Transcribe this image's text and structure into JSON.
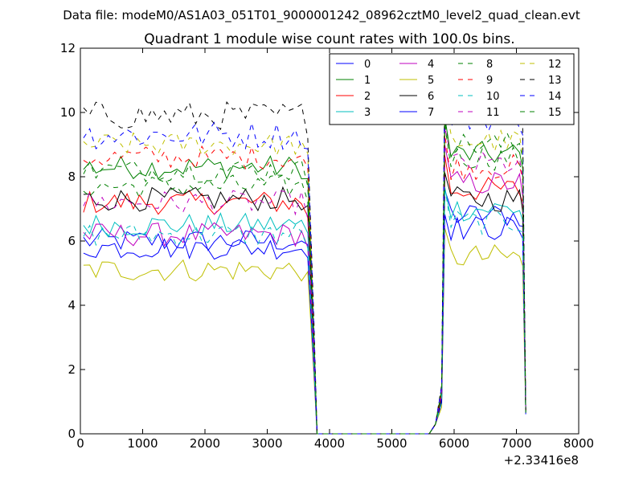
{
  "chart_data": {
    "type": "line",
    "suptitle": "Data file: modeM0/AS1A03_051T01_9000001242_08962cztM0_level2_quad_clean.evt",
    "title": "Quadrant 1 module wise count rates with 100.0s bins.",
    "xlabel": "",
    "ylabel": "",
    "x_offset_label": "+2.33416e8",
    "xlim": [
      0,
      8000
    ],
    "ylim": [
      0,
      12
    ],
    "xticks": [
      "0",
      "1000",
      "2000",
      "3000",
      "4000",
      "5000",
      "6000",
      "7000",
      "8000"
    ],
    "yticks": [
      "0",
      "2",
      "4",
      "6",
      "8",
      "10",
      "12"
    ],
    "grid": false,
    "legend_position": "top-right",
    "legend_columns": 4,
    "gti_1": [
      50,
      3550
    ],
    "gti_2": [
      5850,
      7050
    ],
    "bin_width": 100,
    "series": [
      {
        "name": "0",
        "color": "#0000ff",
        "dash": "solid",
        "base": 6.0,
        "base2": 6.8
      },
      {
        "name": "1",
        "color": "#008000",
        "dash": "solid",
        "base": 8.3,
        "base2": 8.7
      },
      {
        "name": "2",
        "color": "#ff0000",
        "dash": "solid",
        "base": 7.2,
        "base2": 7.6
      },
      {
        "name": "3",
        "color": "#00bfbf",
        "dash": "solid",
        "base": 6.5,
        "base2": 7.0
      },
      {
        "name": "4",
        "color": "#bf00bf",
        "dash": "solid",
        "base": 6.2,
        "base2": 7.8
      },
      {
        "name": "5",
        "color": "#bfbf00",
        "dash": "solid",
        "base": 5.1,
        "base2": 5.5
      },
      {
        "name": "6",
        "color": "#000000",
        "dash": "solid",
        "base": 7.3,
        "base2": 7.3
      },
      {
        "name": "7",
        "color": "#0000ff",
        "dash": "solid",
        "base": 5.8,
        "base2": 6.4
      },
      {
        "name": "8",
        "color": "#008000",
        "dash": "dashed",
        "base": 7.7,
        "base2": 8.6
      },
      {
        "name": "9",
        "color": "#ff0000",
        "dash": "dashed",
        "base": 8.6,
        "base2": 8.3
      },
      {
        "name": "10",
        "color": "#00bfbf",
        "dash": "dashed",
        "base": 6.2,
        "base2": 6.6
      },
      {
        "name": "11",
        "color": "#bf00bf",
        "dash": "dashed",
        "base": 7.2,
        "base2": 8.4
      },
      {
        "name": "12",
        "color": "#bfbf00",
        "dash": "dashed",
        "base": 9.0,
        "base2": 9.1
      },
      {
        "name": "13",
        "color": "#000000",
        "dash": "dashed",
        "base": 9.9,
        "base2": 10.1
      },
      {
        "name": "14",
        "color": "#0000ff",
        "dash": "dashed",
        "base": 9.3,
        "base2": 9.8
      },
      {
        "name": "15",
        "color": "#008000",
        "dash": "dashed",
        "base": 8.2,
        "base2": 9.0
      }
    ]
  }
}
